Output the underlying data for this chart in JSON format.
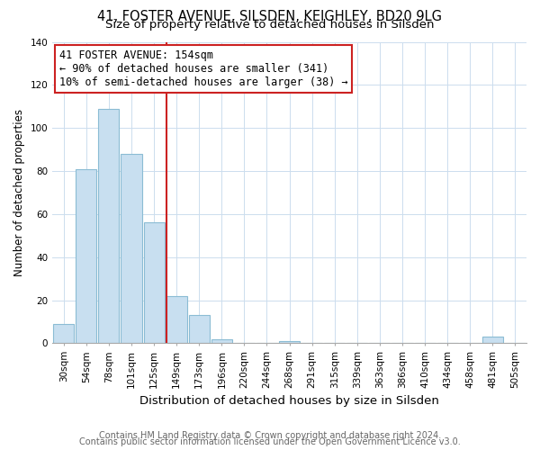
{
  "title": "41, FOSTER AVENUE, SILSDEN, KEIGHLEY, BD20 9LG",
  "subtitle": "Size of property relative to detached houses in Silsden",
  "xlabel": "Distribution of detached houses by size in Silsden",
  "ylabel": "Number of detached properties",
  "bar_labels": [
    "30sqm",
    "54sqm",
    "78sqm",
    "101sqm",
    "125sqm",
    "149sqm",
    "173sqm",
    "196sqm",
    "220sqm",
    "244sqm",
    "268sqm",
    "291sqm",
    "315sqm",
    "339sqm",
    "363sqm",
    "386sqm",
    "410sqm",
    "434sqm",
    "458sqm",
    "481sqm",
    "505sqm"
  ],
  "bar_values": [
    9,
    81,
    109,
    88,
    56,
    22,
    13,
    2,
    0,
    0,
    1,
    0,
    0,
    0,
    0,
    0,
    0,
    0,
    0,
    3,
    0
  ],
  "bar_color": "#c8dff0",
  "bar_edge_color": "#8bbcd4",
  "vline_color": "#cc2222",
  "annotation_text_line1": "41 FOSTER AVENUE: 154sqm",
  "annotation_text_line2": "← 90% of detached houses are smaller (341)",
  "annotation_text_line3": "10% of semi-detached houses are larger (38) →",
  "annotation_box_color": "#ffffff",
  "annotation_box_edge": "#cc2222",
  "ylim": [
    0,
    140
  ],
  "yticks": [
    0,
    20,
    40,
    60,
    80,
    100,
    120,
    140
  ],
  "footer1": "Contains HM Land Registry data © Crown copyright and database right 2024.",
  "footer2": "Contains public sector information licensed under the Open Government Licence v3.0.",
  "bg_color": "#ffffff",
  "grid_color": "#ccddee",
  "title_fontsize": 10.5,
  "subtitle_fontsize": 9.5,
  "xlabel_fontsize": 9.5,
  "ylabel_fontsize": 8.5,
  "tick_fontsize": 7.5,
  "footer_fontsize": 7.0
}
